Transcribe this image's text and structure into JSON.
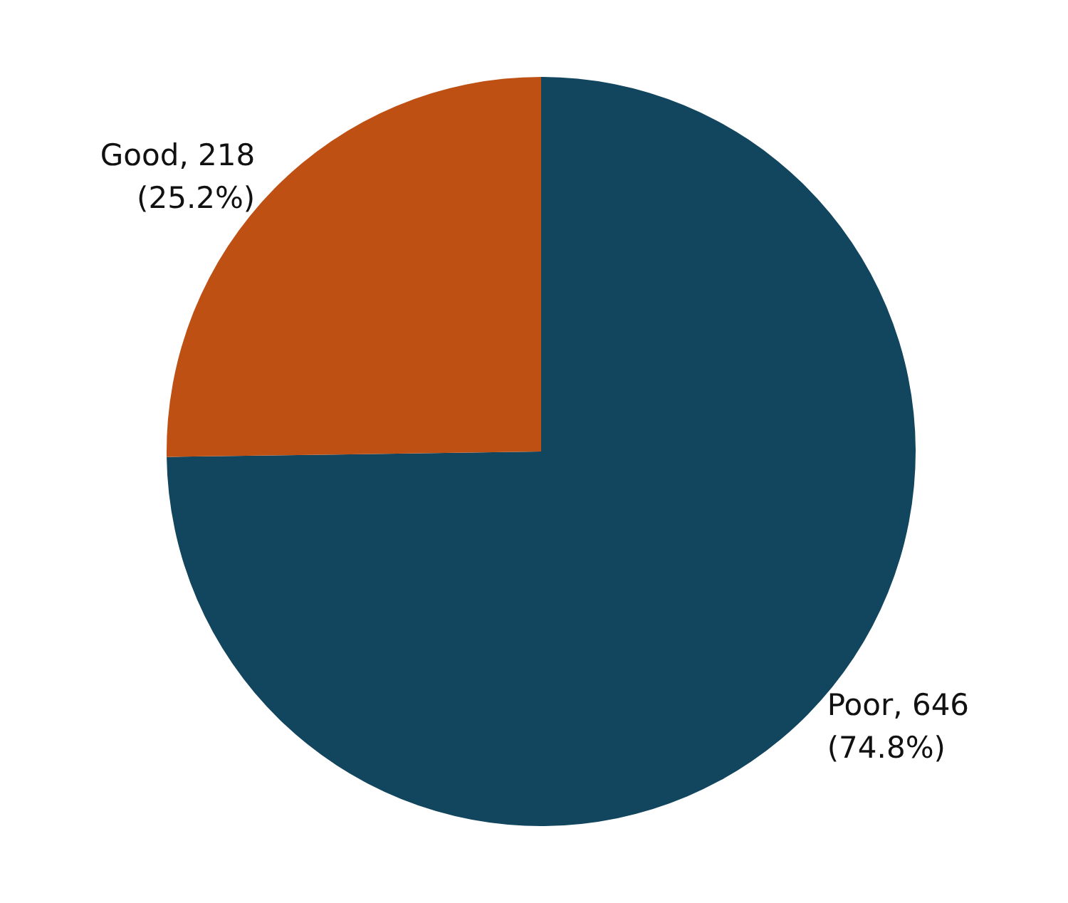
{
  "chart_data": {
    "type": "pie",
    "categories": [
      "Poor",
      "Good"
    ],
    "values": [
      646,
      218
    ],
    "colors": [
      "#12455e",
      "#bf5014"
    ],
    "value_labels": [
      "646\n(74.8%)",
      "218\n(25.2%)"
    ]
  }
}
